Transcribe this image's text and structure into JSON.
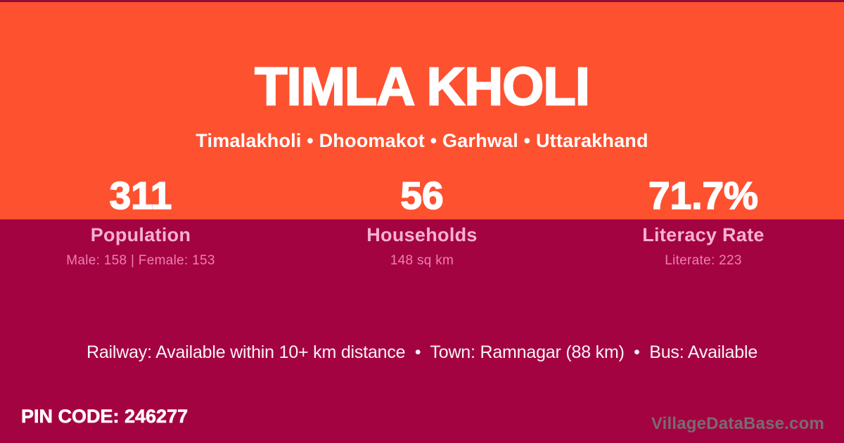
{
  "colors": {
    "top_section_orange": "#fe5130",
    "bottom_section_maroon": "#a40342",
    "top_strip": "#8e0f3c",
    "title_white": "#ffffff",
    "stat_label_pink": "#f7b2d3",
    "stat_detail_pink": "#ee7fb1",
    "watermark_gray": "#786b72"
  },
  "header": {
    "title": "TIMLA KHOLI",
    "breadcrumb": "Timalakholi • Dhoomakot • Garhwal • Uttarakhand"
  },
  "stats": [
    {
      "value": "311",
      "label": "Population",
      "detail": "Male: 158 | Female: 153"
    },
    {
      "value": "56",
      "label": "Households",
      "detail": "148 sq km"
    },
    {
      "value": "71.7%",
      "label": "Literacy Rate",
      "detail": "Literate: 223"
    }
  ],
  "info_line": "Railway: Available within 10+ km distance  •  Town: Ramnagar (88 km)  •  Bus: Available",
  "footer": {
    "pin_code": "PIN CODE: 246277",
    "watermark": "VillageDataBase.com"
  }
}
